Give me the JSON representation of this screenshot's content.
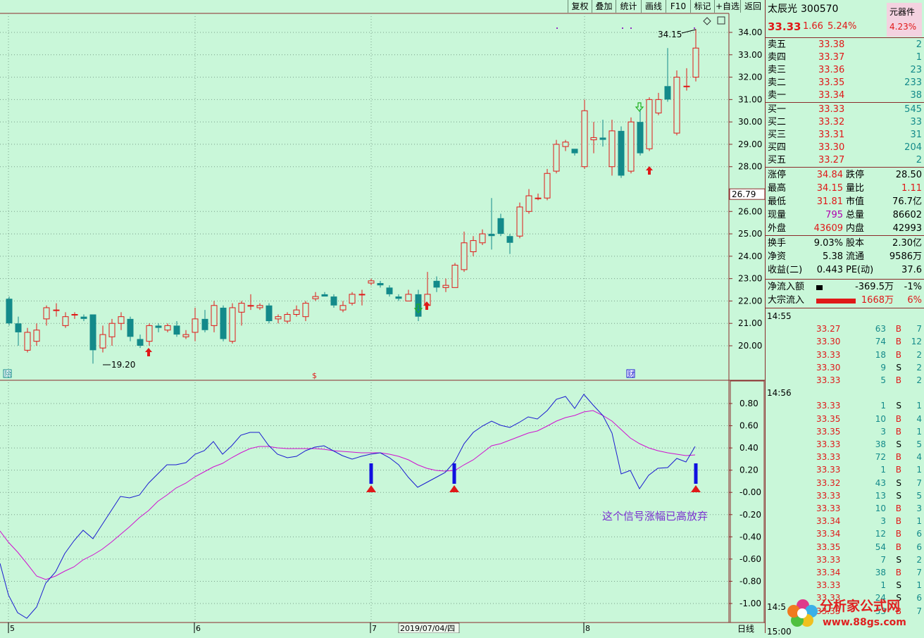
{
  "toolbar": {
    "buttons": [
      "复权",
      "叠加",
      "统计",
      "画线",
      "F10",
      "标记",
      "+自选",
      "返回"
    ]
  },
  "header": {
    "name": "太辰光",
    "code": "300570",
    "badge": "元器件",
    "price": "33.33",
    "change": "1.66",
    "change_pct": "5.24%",
    "badge_pct": "4.23%"
  },
  "orderbook": {
    "asks": [
      {
        "label": "卖五",
        "price": "33.38",
        "vol": "2"
      },
      {
        "label": "卖四",
        "price": "33.37",
        "vol": "1"
      },
      {
        "label": "卖三",
        "price": "33.36",
        "vol": "23"
      },
      {
        "label": "卖二",
        "price": "33.35",
        "vol": "233"
      },
      {
        "label": "卖一",
        "price": "33.34",
        "vol": "38"
      }
    ],
    "bids": [
      {
        "label": "买一",
        "price": "33.33",
        "vol": "545"
      },
      {
        "label": "买二",
        "price": "33.32",
        "vol": "33"
      },
      {
        "label": "买三",
        "price": "33.31",
        "vol": "31"
      },
      {
        "label": "买四",
        "price": "33.30",
        "vol": "204"
      },
      {
        "label": "买五",
        "price": "33.27",
        "vol": "2"
      }
    ]
  },
  "stats1": [
    {
      "l1": "涨停",
      "v1": "34.84",
      "c1": "red",
      "l2": "跌停",
      "v2": "28.50",
      "c2": "blk"
    },
    {
      "l1": "最高",
      "v1": "34.15",
      "c1": "red",
      "l2": "量比",
      "v2": "1.11",
      "c2": "red"
    },
    {
      "l1": "最低",
      "v1": "31.81",
      "c1": "red",
      "l2": "市值",
      "v2": "76.7亿",
      "c2": "blk"
    },
    {
      "l1": "现量",
      "v1": "795",
      "c1": "pur",
      "l2": "总量",
      "v2": "86602",
      "c2": "blk"
    },
    {
      "l1": "外盘",
      "v1": "43609",
      "c1": "red",
      "l2": "内盘",
      "v2": "42993",
      "c2": "blk"
    }
  ],
  "stats2": [
    {
      "l1": "换手",
      "v1": "9.03%",
      "l2": "股本",
      "v2": "2.30亿"
    },
    {
      "l1": "净资",
      "v1": "5.38",
      "l2": "流通",
      "v2": "9586万"
    },
    {
      "l1": "收益(二)",
      "v1": "0.443",
      "l2": "PE(动)",
      "v2": "37.6"
    }
  ],
  "flow": [
    {
      "label": "净流入额",
      "value": "-369.5万",
      "pct": "-1%",
      "bar": "black"
    },
    {
      "label": "大宗流入",
      "value": "1668万",
      "pct": "6%",
      "bar": "red"
    }
  ],
  "ticks": [
    {
      "time": "14:55"
    },
    {
      "price": "33.27",
      "vol": "63",
      "bs": "B",
      "n": "7",
      "pc": "red"
    },
    {
      "price": "33.30",
      "vol": "74",
      "bs": "B",
      "n": "12",
      "pc": "red"
    },
    {
      "price": "33.33",
      "vol": "18",
      "bs": "B",
      "n": "2",
      "pc": "red"
    },
    {
      "price": "33.30",
      "vol": "9",
      "bs": "S",
      "n": "2",
      "pc": "red"
    },
    {
      "price": "33.33",
      "vol": "5",
      "bs": "B",
      "n": "2",
      "pc": "red"
    },
    {
      "time": "14:56"
    },
    {
      "price": "33.33",
      "vol": "1",
      "bs": "S",
      "n": "1",
      "pc": "red"
    },
    {
      "price": "33.35",
      "vol": "10",
      "bs": "B",
      "n": "4",
      "pc": "red"
    },
    {
      "price": "33.35",
      "vol": "3",
      "bs": "B",
      "n": "1",
      "pc": "red"
    },
    {
      "price": "33.33",
      "vol": "38",
      "bs": "S",
      "n": "5",
      "pc": "red"
    },
    {
      "price": "33.33",
      "vol": "72",
      "bs": "B",
      "n": "4",
      "pc": "red"
    },
    {
      "price": "33.33",
      "vol": "1",
      "bs": "B",
      "n": "1",
      "pc": "red"
    },
    {
      "price": "33.32",
      "vol": "43",
      "bs": "S",
      "n": "7",
      "pc": "red"
    },
    {
      "price": "33.33",
      "vol": "13",
      "bs": "S",
      "n": "5",
      "pc": "red"
    },
    {
      "price": "33.33",
      "vol": "10",
      "bs": "B",
      "n": "3",
      "pc": "red"
    },
    {
      "price": "33.34",
      "vol": "3",
      "bs": "B",
      "n": "1",
      "pc": "red"
    },
    {
      "price": "33.34",
      "vol": "12",
      "bs": "B",
      "n": "6",
      "pc": "red"
    },
    {
      "price": "33.35",
      "vol": "54",
      "bs": "B",
      "n": "6",
      "pc": "red"
    },
    {
      "price": "33.33",
      "vol": "7",
      "bs": "S",
      "n": "2",
      "pc": "red"
    },
    {
      "price": "33.34",
      "vol": "38",
      "bs": "B",
      "n": "7",
      "pc": "red"
    },
    {
      "price": "33.33",
      "vol": "1",
      "bs": "S",
      "n": "1",
      "pc": "red"
    },
    {
      "price": "33.33",
      "vol": "24",
      "bs": "S",
      "n": "6",
      "pc": "red"
    },
    {
      "price": "33.35",
      "vol": "53",
      "bs": "B",
      "n": "7",
      "pc": "red"
    }
  ],
  "tick_time3": "14:5",
  "tick_time4": "15:00",
  "chart": {
    "price_axis": [
      "34.00",
      "33.00",
      "32.00",
      "31.00",
      "30.00",
      "29.00",
      "28.00",
      "26.00",
      "25.00",
      "24.00",
      "23.00",
      "22.00",
      "21.00",
      "20.00"
    ],
    "indicator_axis": [
      "0.80",
      "0.60",
      "0.40",
      "0.20",
      "-0.00",
      "-0.20",
      "-0.40",
      "-0.60",
      "-0.80",
      "-1.00"
    ],
    "crosshair_value": "26.79",
    "high_label": "34.15",
    "low_label": "19.20",
    "date_labels": [
      "5",
      "6",
      "7",
      "8"
    ],
    "current_date": "2019/07/04/四",
    "period": "日线",
    "annotation": "这个信号涨幅已高放弃",
    "marker_left": "除",
    "marker_s": "$",
    "marker_cai": "财"
  },
  "logo": {
    "text": "分析家公式网",
    "url": "www.88gs.com"
  },
  "colors": {
    "bg": "#c9f7d9",
    "up": "#e01818",
    "down": "#138a8a",
    "dif": "#1a1ad0",
    "dea": "#d010d0"
  }
}
